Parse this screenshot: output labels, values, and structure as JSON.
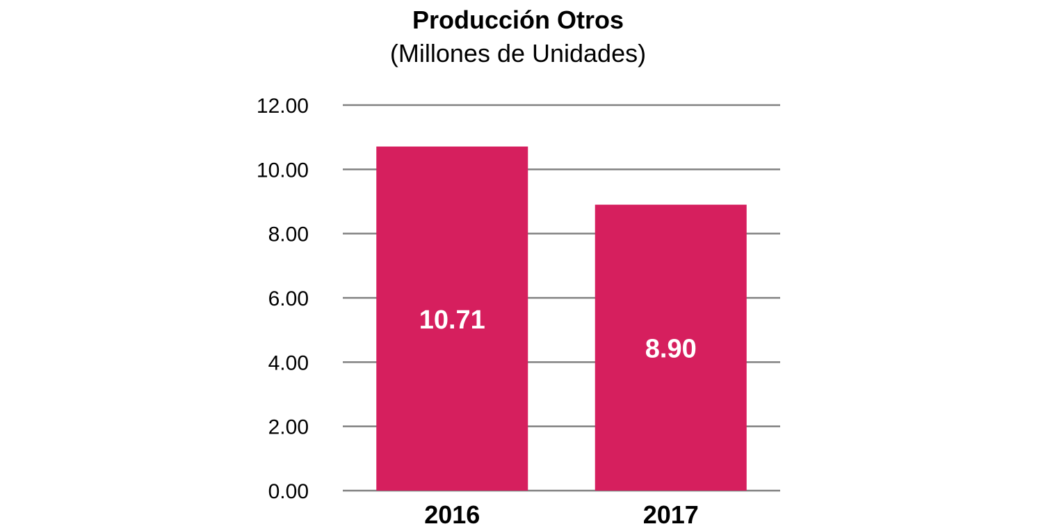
{
  "chart_data": {
    "type": "bar",
    "title": "Producción Otros",
    "subtitle": "(Millones de Unidades)",
    "xlabel": "",
    "ylabel": "",
    "categories": [
      "2016",
      "2017"
    ],
    "values": [
      10.71,
      8.9
    ],
    "data_labels": [
      "10.71",
      "8.90"
    ],
    "ylim": [
      0,
      12
    ],
    "yticks": [
      0,
      2,
      4,
      6,
      8,
      10,
      12
    ],
    "ytick_labels": [
      "0.00",
      "2.00",
      "4.00",
      "6.00",
      "8.00",
      "10.00",
      "12.00"
    ],
    "grid": true,
    "legend": "none",
    "bar_color": "#D61F5E",
    "grid_color": "#808080"
  }
}
